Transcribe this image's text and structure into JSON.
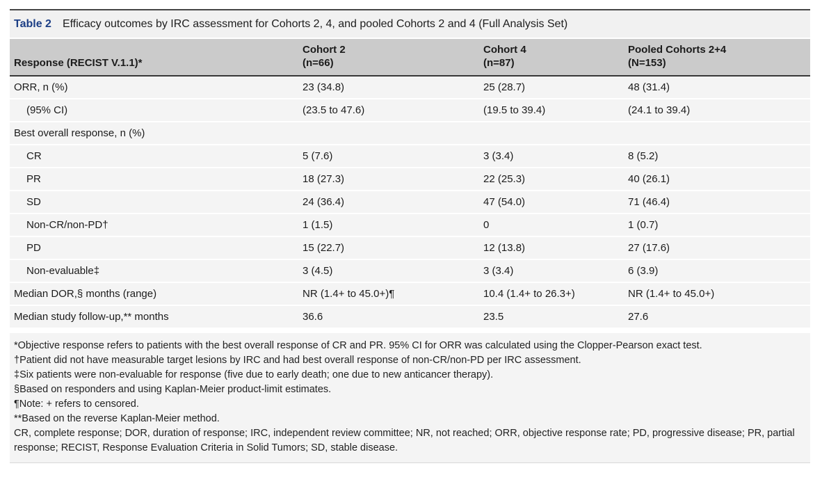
{
  "colors": {
    "accent_blue": "#1c3e85",
    "caption_bg": "#f1f1f1",
    "header_bg": "#cbcbcb",
    "band_bg": "#f4f4f4",
    "rule_dark": "#454545"
  },
  "table": {
    "label": "Table 2",
    "title": "Efficacy outcomes by IRC assessment for Cohorts 2, 4, and pooled Cohorts 2 and 4 (Full Analysis Set)",
    "header": {
      "response": "Response (RECIST V.1.1)*",
      "cohorts": [
        {
          "name": "Cohort 2",
          "n": "(n=66)"
        },
        {
          "name": "Cohort 4",
          "n": "(n=87)"
        },
        {
          "name": "Pooled Cohorts 2+4",
          "n": "(N=153)"
        }
      ]
    },
    "rows": [
      {
        "label": "ORR, n (%)",
        "indent": false,
        "values": [
          "23 (34.8)",
          "25 (28.7)",
          "48 (31.4)"
        ]
      },
      {
        "label": "(95% CI)",
        "indent": true,
        "values": [
          "(23.5 to 47.6)",
          "(19.5 to 39.4)",
          "(24.1 to 39.4)"
        ]
      },
      {
        "label": "Best overall response, n (%)",
        "indent": false,
        "values": [
          "",
          "",
          ""
        ]
      },
      {
        "label": "CR",
        "indent": true,
        "values": [
          "5 (7.6)",
          "3 (3.4)",
          "8 (5.2)"
        ]
      },
      {
        "label": "PR",
        "indent": true,
        "values": [
          "18 (27.3)",
          "22 (25.3)",
          "40 (26.1)"
        ]
      },
      {
        "label": "SD",
        "indent": true,
        "values": [
          "24 (36.4)",
          "47 (54.0)",
          "71 (46.4)"
        ]
      },
      {
        "label": "Non-CR/non-PD†",
        "indent": true,
        "values": [
          "1 (1.5)",
          "0",
          "1 (0.7)"
        ]
      },
      {
        "label": "PD",
        "indent": true,
        "values": [
          "15 (22.7)",
          "12 (13.8)",
          "27 (17.6)"
        ]
      },
      {
        "label": "Non-evaluable‡",
        "indent": true,
        "values": [
          "3 (4.5)",
          "3 (3.4)",
          "6 (3.9)"
        ]
      },
      {
        "label": "Median DOR,§ months (range)",
        "indent": false,
        "values": [
          "NR (1.4+ to 45.0+)¶",
          "10.4 (1.4+ to 26.3+)",
          "NR (1.4+ to 45.0+)"
        ]
      },
      {
        "label": "Median study follow-up,** months",
        "indent": false,
        "values": [
          "36.6",
          "23.5",
          "27.6"
        ]
      }
    ],
    "footnotes": [
      "*Objective response refers to patients with the best overall response of CR and PR. 95% CI for ORR was calculated using the Clopper-Pearson exact test.",
      "†Patient did not have measurable target lesions by IRC and had best overall response of non-CR/non-PD per IRC assessment.",
      "‡Six patients were non-evaluable for response (five due to early death; one due to new anticancer therapy).",
      "§Based on responders and using Kaplan-Meier product-limit estimates.",
      "¶Note: + refers to censored.",
      "**Based on the reverse Kaplan-Meier method.",
      "CR, complete response; DOR, duration of response; IRC, independent review committee; NR, not reached; ORR, objective response rate; PD, progressive disease; PR, partial response; RECIST, Response Evaluation Criteria in Solid Tumors; SD, stable disease."
    ]
  }
}
